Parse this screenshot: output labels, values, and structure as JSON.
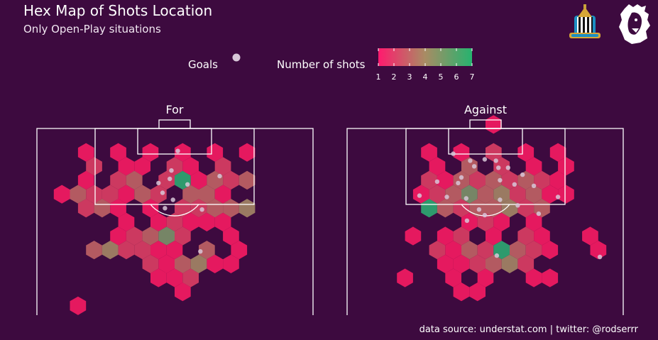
{
  "header": {
    "title": "Hex Map of Shots Location",
    "subtitle": "Only Open-Play situations"
  },
  "footer": {
    "source": "data source: understat.com | twitter: @rodserrr"
  },
  "logos": {
    "club": "newcastle-united-crest-icon",
    "league": "premier-league-lion-icon"
  },
  "colors": {
    "background": "#3d0a3f",
    "low": "#e5195f",
    "mid": "#9a7a62",
    "high": "#2e9a6d",
    "goal": "#d7c7d8",
    "lines": "#ffffff"
  },
  "chart_data": {
    "type": "heatmap",
    "legend": {
      "goals_label": "Goals",
      "shots_label": "Number of shots",
      "ticks": [
        "1",
        "2",
        "3",
        "4",
        "5",
        "6",
        "7"
      ],
      "range": [
        1,
        7
      ]
    },
    "panels": [
      {
        "title": "For",
        "hexes": [
          {
            "c": -6,
            "r": 1,
            "v": 1
          },
          {
            "c": -5,
            "r": 2,
            "v": 2
          },
          {
            "c": -4,
            "r": 1,
            "v": 1
          },
          {
            "c": -3,
            "r": 2,
            "v": 1
          },
          {
            "c": -2,
            "r": 1,
            "v": 1
          },
          {
            "c": 0,
            "r": 1,
            "v": 1
          },
          {
            "c": 2,
            "r": 1,
            "v": 1
          },
          {
            "c": 4,
            "r": 1,
            "v": 1
          },
          {
            "c": -2,
            "r": 2,
            "v": 1
          },
          {
            "c": 0,
            "r": 2,
            "v": 2
          },
          {
            "c": 1,
            "r": 2,
            "v": 1
          },
          {
            "c": 3,
            "r": 2,
            "v": 2
          },
          {
            "c": -6,
            "r": 3,
            "v": 1
          },
          {
            "c": -4,
            "r": 3,
            "v": 2
          },
          {
            "c": -3,
            "r": 3,
            "v": 3
          },
          {
            "c": -1,
            "r": 3,
            "v": 2
          },
          {
            "c": 0,
            "r": 3,
            "v": 7
          },
          {
            "c": 1,
            "r": 3,
            "v": 1
          },
          {
            "c": 2,
            "r": 3,
            "v": 3
          },
          {
            "c": 3,
            "r": 3,
            "v": 2
          },
          {
            "c": 4,
            "r": 3,
            "v": 3
          },
          {
            "c": -7,
            "r": 4,
            "v": 1
          },
          {
            "c": -6,
            "r": 4,
            "v": 3
          },
          {
            "c": -5,
            "r": 4,
            "v": 2
          },
          {
            "c": -4,
            "r": 4,
            "v": 2
          },
          {
            "c": -3,
            "r": 4,
            "v": 1
          },
          {
            "c": -2,
            "r": 4,
            "v": 3
          },
          {
            "c": -1,
            "r": 4,
            "v": 2
          },
          {
            "c": 1,
            "r": 4,
            "v": 3
          },
          {
            "c": 2,
            "r": 4,
            "v": 3
          },
          {
            "c": 3,
            "r": 4,
            "v": 1
          },
          {
            "c": -6,
            "r": 5,
            "v": 2
          },
          {
            "c": -5,
            "r": 5,
            "v": 3
          },
          {
            "c": -4,
            "r": 5,
            "v": 1
          },
          {
            "c": -2,
            "r": 5,
            "v": 1
          },
          {
            "c": 0,
            "r": 5,
            "v": 2
          },
          {
            "c": 1,
            "r": 5,
            "v": 2
          },
          {
            "c": 2,
            "r": 5,
            "v": 3
          },
          {
            "c": 3,
            "r": 5,
            "v": 3
          },
          {
            "c": 4,
            "r": 5,
            "v": 4
          },
          {
            "c": -3,
            "r": 6,
            "v": 1
          },
          {
            "c": -1,
            "r": 6,
            "v": 1
          },
          {
            "c": 0,
            "r": 6,
            "v": 2
          },
          {
            "c": 1,
            "r": 6,
            "v": 1
          },
          {
            "c": 2,
            "r": 6,
            "v": 1
          },
          {
            "c": 3,
            "r": 6,
            "v": 1
          },
          {
            "c": -4,
            "r": 7,
            "v": 1
          },
          {
            "c": -3,
            "r": 7,
            "v": 2
          },
          {
            "c": -2,
            "r": 7,
            "v": 3
          },
          {
            "c": -1,
            "r": 7,
            "v": 5
          },
          {
            "c": 0,
            "r": 7,
            "v": 2
          },
          {
            "c": 3,
            "r": 7,
            "v": 1
          },
          {
            "c": -5,
            "r": 8,
            "v": 3
          },
          {
            "c": -4,
            "r": 8,
            "v": 4
          },
          {
            "c": -3,
            "r": 8,
            "v": 2
          },
          {
            "c": -2,
            "r": 8,
            "v": 2
          },
          {
            "c": -1,
            "r": 8,
            "v": 1
          },
          {
            "c": 0,
            "r": 8,
            "v": 1
          },
          {
            "c": 2,
            "r": 8,
            "v": 3
          },
          {
            "c": 4,
            "r": 8,
            "v": 1
          },
          {
            "c": -2,
            "r": 9,
            "v": 2
          },
          {
            "c": -1,
            "r": 9,
            "v": 1
          },
          {
            "c": 0,
            "r": 9,
            "v": 3
          },
          {
            "c": 1,
            "r": 9,
            "v": 4
          },
          {
            "c": 2,
            "r": 9,
            "v": 1
          },
          {
            "c": 3,
            "r": 9,
            "v": 1
          },
          {
            "c": -1,
            "r": 10,
            "v": 1
          },
          {
            "c": 0,
            "r": 10,
            "v": 1
          },
          {
            "c": 1,
            "r": 10,
            "v": 2
          },
          {
            "c": 0,
            "r": 11,
            "v": 1
          },
          {
            "c": -6,
            "r": 12,
            "v": 1
          }
        ],
        "goals": [
          {
            "c": 0.2,
            "r": 0.9
          },
          {
            "c": -0.2,
            "r": 2.3
          },
          {
            "c": -0.3,
            "r": 2.9
          },
          {
            "c": -1.5,
            "r": 3.2
          },
          {
            "c": 0.3,
            "r": 3.3
          },
          {
            "c": -1.0,
            "r": 3.9
          },
          {
            "c": -0.1,
            "r": 4.4
          },
          {
            "c": 2.8,
            "r": 2.7
          },
          {
            "c": -1.1,
            "r": 5.0
          },
          {
            "c": 1.2,
            "r": 5.1
          },
          {
            "c": 1.6,
            "r": 8.1
          }
        ]
      },
      {
        "title": "Against",
        "hexes": [
          {
            "c": 0,
            "r": -1,
            "v": 1
          },
          {
            "c": -4,
            "r": 1,
            "v": 1
          },
          {
            "c": -2,
            "r": 1,
            "v": 1
          },
          {
            "c": 0,
            "r": 1,
            "v": 2
          },
          {
            "c": 2,
            "r": 1,
            "v": 1
          },
          {
            "c": 4,
            "r": 1,
            "v": 1
          },
          {
            "c": -3,
            "r": 2,
            "v": 1
          },
          {
            "c": -1,
            "r": 2,
            "v": 3
          },
          {
            "c": 1,
            "r": 2,
            "v": 2
          },
          {
            "c": 3,
            "r": 2,
            "v": 1
          },
          {
            "c": 5,
            "r": 2,
            "v": 1
          },
          {
            "c": -4,
            "r": 3,
            "v": 2
          },
          {
            "c": -3,
            "r": 3,
            "v": 1
          },
          {
            "c": -2,
            "r": 3,
            "v": 3
          },
          {
            "c": -1,
            "r": 3,
            "v": 2
          },
          {
            "c": 0,
            "r": 3,
            "v": 3
          },
          {
            "c": 1,
            "r": 3,
            "v": 2
          },
          {
            "c": 2,
            "r": 3,
            "v": 3
          },
          {
            "c": 3,
            "r": 3,
            "v": 2
          },
          {
            "c": 4,
            "r": 3,
            "v": 1
          },
          {
            "c": -4,
            "r": 4,
            "v": 1
          },
          {
            "c": -3,
            "r": 4,
            "v": 2
          },
          {
            "c": -2,
            "r": 4,
            "v": 3
          },
          {
            "c": -1,
            "r": 4,
            "v": 5
          },
          {
            "c": 0,
            "r": 4,
            "v": 3
          },
          {
            "c": 1,
            "r": 4,
            "v": 4
          },
          {
            "c": 2,
            "r": 4,
            "v": 2
          },
          {
            "c": 3,
            "r": 4,
            "v": 3
          },
          {
            "c": 4,
            "r": 4,
            "v": 1
          },
          {
            "c": 5,
            "r": 4,
            "v": 1
          },
          {
            "c": -4,
            "r": 5,
            "v": 7
          },
          {
            "c": -3,
            "r": 5,
            "v": 3
          },
          {
            "c": -2,
            "r": 5,
            "v": 2
          },
          {
            "c": -1,
            "r": 5,
            "v": 3
          },
          {
            "c": 0,
            "r": 5,
            "v": 3
          },
          {
            "c": 1,
            "r": 5,
            "v": 4
          },
          {
            "c": 2,
            "r": 5,
            "v": 2
          },
          {
            "c": 3,
            "r": 5,
            "v": 3
          },
          {
            "c": -1,
            "r": 6,
            "v": 1
          },
          {
            "c": 0,
            "r": 6,
            "v": 2
          },
          {
            "c": 1,
            "r": 6,
            "v": 1
          },
          {
            "c": 3,
            "r": 6,
            "v": 1
          },
          {
            "c": -5,
            "r": 7,
            "v": 1
          },
          {
            "c": -3,
            "r": 7,
            "v": 1
          },
          {
            "c": -2,
            "r": 7,
            "v": 2
          },
          {
            "c": 0,
            "r": 7,
            "v": 1
          },
          {
            "c": 2,
            "r": 7,
            "v": 2
          },
          {
            "c": 3,
            "r": 7,
            "v": 1
          },
          {
            "c": 6,
            "r": 7,
            "v": 1
          },
          {
            "c": -3,
            "r": 8,
            "v": 2
          },
          {
            "c": -2,
            "r": 8,
            "v": 1
          },
          {
            "c": -1,
            "r": 8,
            "v": 3
          },
          {
            "c": 0,
            "r": 8,
            "v": 2
          },
          {
            "c": 1,
            "r": 8,
            "v": 7
          },
          {
            "c": 2,
            "r": 8,
            "v": 3
          },
          {
            "c": 3,
            "r": 8,
            "v": 2
          },
          {
            "c": 4,
            "r": 8,
            "v": 1
          },
          {
            "c": 7,
            "r": 8,
            "v": 1
          },
          {
            "c": -3,
            "r": 9,
            "v": 1
          },
          {
            "c": -2,
            "r": 9,
            "v": 1
          },
          {
            "c": -1,
            "r": 9,
            "v": 2
          },
          {
            "c": 0,
            "r": 9,
            "v": 3
          },
          {
            "c": 1,
            "r": 9,
            "v": 4
          },
          {
            "c": 2,
            "r": 9,
            "v": 2
          },
          {
            "c": -5,
            "r": 10,
            "v": 1
          },
          {
            "c": -2,
            "r": 10,
            "v": 1
          },
          {
            "c": 0,
            "r": 10,
            "v": 1
          },
          {
            "c": 3,
            "r": 10,
            "v": 1
          },
          {
            "c": 4,
            "r": 10,
            "v": 1
          },
          {
            "c": -2,
            "r": 11,
            "v": 1
          },
          {
            "c": -1,
            "r": 11,
            "v": 1
          }
        ],
        "goals": [
          {
            "c": -2.5,
            "r": 1.1
          },
          {
            "c": -1.2,
            "r": 1.6
          },
          {
            "c": -0.7,
            "r": 2.0
          },
          {
            "c": -0.3,
            "r": 1.5
          },
          {
            "c": 0.4,
            "r": 1.6
          },
          {
            "c": 0.8,
            "r": 2.1
          },
          {
            "c": 1.4,
            "r": 2.1
          },
          {
            "c": 2.3,
            "r": 2.6
          },
          {
            "c": -1.5,
            "r": 2.8
          },
          {
            "c": -3.5,
            "r": 3.1
          },
          {
            "c": -2.2,
            "r": 3.2
          },
          {
            "c": 0.4,
            "r": 3.0
          },
          {
            "c": 1.3,
            "r": 3.3
          },
          {
            "c": 2.5,
            "r": 3.4
          },
          {
            "c": -4.1,
            "r": 4.1
          },
          {
            "c": -2.4,
            "r": 4.2
          },
          {
            "c": -1.2,
            "r": 4.3
          },
          {
            "c": 0.9,
            "r": 4.4
          },
          {
            "c": 2.0,
            "r": 4.8
          },
          {
            "c": -0.9,
            "r": 5.1
          },
          {
            "c": -0.3,
            "r": 5.5
          },
          {
            "c": 2.8,
            "r": 5.4
          },
          {
            "c": 4.5,
            "r": 4.2
          },
          {
            "c": -1.4,
            "r": 5.9
          },
          {
            "c": 0.7,
            "r": 8.4
          },
          {
            "c": 7.1,
            "r": 8.5
          }
        ]
      }
    ]
  }
}
